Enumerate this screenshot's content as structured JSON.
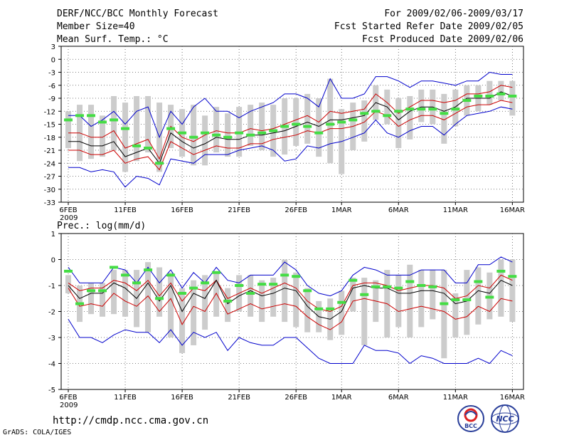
{
  "header": {
    "title": "DERF/NCC/BCC Monthly Forecast",
    "member": "Member Size=40",
    "var1": "Mean Surf. Temp.: °C",
    "for": "For 2009/02/06-2009/03/17",
    "started": "Fcst Started Refer Date 2009/02/05",
    "produced": "Fcst Produced Date 2009/02/06"
  },
  "footer": {
    "url": "http://cmdp.ncc.cma.gov.cn",
    "credit": "GrADS: COLA/IGES",
    "logo1_text": "BCC",
    "logo2_text": "NCC"
  },
  "colors": {
    "min_max": "#0000cc",
    "spread": "#cc0000",
    "mean": "#000000",
    "box": "#cccccc",
    "obs": "#44dd44"
  },
  "chart_data": [
    {
      "type": "line",
      "title": "Mean Surf. Temp.: °C",
      "x_tick_labels": [
        "6FEB",
        "11FEB",
        "16FEB",
        "21FEB",
        "26FEB",
        "1MAR",
        "6MAR",
        "11MAR",
        "16MAR"
      ],
      "x_tick_days": [
        1,
        6,
        11,
        16,
        21,
        25,
        30,
        35,
        40
      ],
      "year_label": "2009",
      "ylim": [
        -33,
        3
      ],
      "yticks": [
        3,
        0,
        -3,
        -6,
        -9,
        -12,
        -15,
        -18,
        -21,
        -24,
        -27,
        -30,
        -33
      ],
      "days": [
        1,
        2,
        3,
        4,
        5,
        6,
        7,
        8,
        9,
        10,
        11,
        12,
        13,
        14,
        15,
        16,
        17,
        18,
        19,
        20,
        21,
        22,
        23,
        24,
        25,
        26,
        27,
        28,
        29,
        30,
        31,
        32,
        33,
        34,
        35,
        36,
        37,
        38,
        39,
        40
      ],
      "series": [
        {
          "name": "max",
          "values": [
            -13,
            -13,
            -15.5,
            -14,
            -12,
            -15,
            -12,
            -11,
            -18,
            -12,
            -15,
            -11,
            -9,
            -12,
            -12,
            -13.5,
            -12,
            -11,
            -10,
            -8,
            -8,
            -9,
            -11,
            -4.5,
            -9,
            -9,
            -8,
            -4,
            -4,
            -5,
            -6.5,
            -5,
            -5,
            -5.5,
            -6,
            -5,
            -5,
            -3,
            -3.5,
            -3.5
          ]
        },
        {
          "name": "upper",
          "values": [
            -17,
            -17,
            -18,
            -18,
            -16.5,
            -20.5,
            -19.5,
            -18.5,
            -23,
            -15.5,
            -18,
            -19,
            -17.5,
            -16.5,
            -17,
            -17,
            -16,
            -16.5,
            -16,
            -15,
            -14,
            -13,
            -14.5,
            -12,
            -12.5,
            -12,
            -11.5,
            -8,
            -10,
            -12.5,
            -11,
            -9.5,
            -9.5,
            -10,
            -9.5,
            -8,
            -8,
            -7.5,
            -6,
            -6.5
          ]
        },
        {
          "name": "mean",
          "values": [
            -19,
            -19,
            -20,
            -20,
            -19,
            -22.5,
            -21.5,
            -20.5,
            -24,
            -17,
            -19,
            -20.5,
            -19.5,
            -18,
            -18.5,
            -18.5,
            -17.5,
            -17.5,
            -17,
            -16.5,
            -15.5,
            -14.5,
            -15.5,
            -14,
            -14,
            -13.5,
            -13,
            -10,
            -11,
            -14,
            -12,
            -11,
            -11,
            -12,
            -11,
            -9,
            -9,
            -9,
            -7.5,
            -8.5
          ]
        },
        {
          "name": "lower",
          "values": [
            -21,
            -21,
            -22,
            -22,
            -21,
            -24,
            -23,
            -22.5,
            -25.5,
            -19,
            -20.5,
            -22,
            -21,
            -20,
            -20.5,
            -20.5,
            -19.5,
            -19.5,
            -18.5,
            -18,
            -17.5,
            -16.5,
            -17,
            -16,
            -16,
            -15.5,
            -14.5,
            -12,
            -13,
            -15.5,
            -14,
            -13,
            -13,
            -14,
            -12.5,
            -11,
            -10.5,
            -10.5,
            -9.5,
            -10
          ]
        },
        {
          "name": "min",
          "values": [
            -25,
            -25,
            -26,
            -25.5,
            -26,
            -29.5,
            -27,
            -27.5,
            -29,
            -23,
            -23.5,
            -24,
            -22,
            -22,
            -22,
            -21,
            -20.5,
            -20,
            -21,
            -23.5,
            -23,
            -20,
            -20.5,
            -19.5,
            -19,
            -18,
            -17,
            -14,
            -17,
            -18,
            -16.5,
            -15.5,
            -15.5,
            -17.5,
            -15,
            -13,
            -12.5,
            -12,
            -11,
            -11.5
          ]
        },
        {
          "name": "box_top",
          "values": [
            -12,
            -10.5,
            -10.5,
            -13,
            -8.5,
            -10,
            -8.5,
            -8.5,
            -10,
            -10.5,
            -11.5,
            -10.5,
            -13,
            -11,
            -12.5,
            -11,
            -10.5,
            -10,
            -10.5,
            -9,
            -9,
            -8,
            -9,
            -4.5,
            -11.5,
            -10,
            -9.5,
            -6,
            -7,
            -9,
            -8.5,
            -7,
            -7,
            -8,
            -7,
            -6,
            -6,
            -5,
            -5,
            -5
          ]
        },
        {
          "name": "box_bottom",
          "values": [
            -20.5,
            -23.5,
            -23,
            -22.5,
            -21,
            -26,
            -23.5,
            -21.5,
            -26,
            -20.5,
            -22.5,
            -24.5,
            -24.5,
            -21.5,
            -22.5,
            -22.5,
            -20,
            -21,
            -22.5,
            -22,
            -20,
            -19.5,
            -22.5,
            -24,
            -26.5,
            -21,
            -19,
            -14,
            -15,
            -20.5,
            -18.5,
            -14.5,
            -15,
            -19.5,
            -15.5,
            -13,
            -12,
            -10.5,
            -9.5,
            -13
          ]
        },
        {
          "name": "observed",
          "values": [
            -14,
            -13,
            -13,
            -14.5,
            -14,
            -16,
            -20,
            -20.5,
            -24,
            -16,
            -17,
            -18,
            -17,
            -17.5,
            -18,
            -17,
            -17.5,
            -17,
            -16.5,
            -15.5,
            -15,
            -15.5,
            -17,
            -15,
            -14.5,
            -14,
            -12.5,
            -12,
            -13,
            -12,
            -11.5,
            -11.5,
            -11.5,
            -12.5,
            -11.5,
            -9.5,
            -8.5,
            -8.5,
            -8,
            -8.5
          ]
        }
      ]
    },
    {
      "type": "line",
      "title": "Prec.: log(mm/d)",
      "x_tick_labels": [
        "6FEB",
        "11FEB",
        "16FEB",
        "21FEB",
        "26FEB",
        "1MAR",
        "6MAR",
        "11MAR",
        "16MAR"
      ],
      "x_tick_days": [
        1,
        6,
        11,
        16,
        21,
        25,
        30,
        35,
        40
      ],
      "year_label": "2009",
      "ylim": [
        -5,
        1
      ],
      "yticks": [
        1,
        0,
        -1,
        -2,
        -3,
        -4,
        -5
      ],
      "days": [
        1,
        2,
        3,
        4,
        5,
        6,
        7,
        8,
        9,
        10,
        11,
        12,
        13,
        14,
        15,
        16,
        17,
        18,
        19,
        20,
        21,
        22,
        23,
        24,
        25,
        26,
        27,
        28,
        29,
        30,
        31,
        32,
        33,
        34,
        35,
        36,
        37,
        38,
        39,
        40
      ],
      "series": [
        {
          "name": "max",
          "values": [
            -0.3,
            -0.9,
            -0.9,
            -0.9,
            -0.3,
            -0.4,
            -0.9,
            -0.3,
            -0.9,
            -0.4,
            -1.1,
            -0.5,
            -0.9,
            -0.3,
            -0.8,
            -0.9,
            -0.6,
            -0.6,
            -0.6,
            -0.1,
            -0.4,
            -1.0,
            -1.3,
            -1.4,
            -1.2,
            -0.6,
            -0.3,
            -0.4,
            -0.6,
            -0.6,
            -0.6,
            -0.4,
            -0.4,
            -0.4,
            -0.9,
            -0.9,
            -0.2,
            -0.2,
            0.1,
            -0.1
          ]
        },
        {
          "name": "upper",
          "values": [
            -0.9,
            -1.2,
            -1.1,
            -1.1,
            -0.8,
            -0.9,
            -1.2,
            -0.8,
            -1.4,
            -0.9,
            -1.6,
            -1.1,
            -1.2,
            -0.8,
            -1.5,
            -1.3,
            -1.1,
            -1.3,
            -1.1,
            -0.9,
            -1.1,
            -1.6,
            -1.9,
            -2.0,
            -1.8,
            -1.0,
            -0.9,
            -0.9,
            -1.0,
            -1.2,
            -1.1,
            -1.0,
            -1.0,
            -1.1,
            -1.5,
            -1.4,
            -1.0,
            -1.1,
            -0.6,
            -0.8
          ]
        },
        {
          "name": "mean",
          "values": [
            -1.0,
            -1.5,
            -1.3,
            -1.3,
            -0.9,
            -1.1,
            -1.5,
            -0.9,
            -1.6,
            -1.0,
            -2.0,
            -1.3,
            -1.5,
            -0.8,
            -1.7,
            -1.4,
            -1.2,
            -1.4,
            -1.3,
            -1.1,
            -1.2,
            -1.8,
            -2.2,
            -2.3,
            -2.0,
            -1.1,
            -1.0,
            -1.1,
            -1.1,
            -1.3,
            -1.3,
            -1.2,
            -1.2,
            -1.3,
            -1.7,
            -1.6,
            -1.2,
            -1.3,
            -0.8,
            -1.0
          ]
        },
        {
          "name": "lower",
          "values": [
            -1.1,
            -1.8,
            -1.7,
            -1.8,
            -1.3,
            -1.6,
            -1.8,
            -1.4,
            -2.0,
            -1.5,
            -2.5,
            -1.8,
            -2.0,
            -1.3,
            -2.1,
            -1.9,
            -1.7,
            -1.9,
            -1.8,
            -1.7,
            -1.8,
            -2.2,
            -2.5,
            -2.7,
            -2.4,
            -1.6,
            -1.5,
            -1.6,
            -1.7,
            -2.0,
            -1.9,
            -1.8,
            -1.9,
            -2.0,
            -2.3,
            -2.2,
            -1.8,
            -2.0,
            -1.5,
            -1.6
          ]
        },
        {
          "name": "min",
          "values": [
            -2.3,
            -3.0,
            -3.0,
            -3.2,
            -2.9,
            -2.7,
            -2.8,
            -2.8,
            -3.2,
            -2.7,
            -3.3,
            -2.8,
            -3.0,
            -2.8,
            -3.5,
            -3.0,
            -3.2,
            -3.3,
            -3.3,
            -3.0,
            -3.0,
            -3.4,
            -3.8,
            -4.0,
            -4.0,
            -4.0,
            -3.3,
            -3.5,
            -3.5,
            -3.6,
            -4.0,
            -3.7,
            -3.8,
            -4.0,
            -4.0,
            -4.0,
            -3.8,
            -4.0,
            -3.5,
            -3.7
          ]
        },
        {
          "name": "box_top",
          "values": [
            -0.6,
            -1.0,
            -0.9,
            -0.9,
            -0.4,
            -0.4,
            -0.4,
            -0.1,
            -0.3,
            -0.5,
            -1.1,
            -0.8,
            -0.6,
            -0.5,
            -1.1,
            -0.6,
            -0.6,
            -0.8,
            -0.7,
            0.0,
            -0.5,
            -1.1,
            -1.6,
            -1.5,
            -1.2,
            -0.7,
            -0.7,
            -0.8,
            -0.4,
            -0.6,
            -0.2,
            -0.4,
            -0.4,
            -0.4,
            -1.3,
            -0.4,
            -0.3,
            -0.5,
            0.0,
            0.0
          ]
        },
        {
          "name": "box_bottom",
          "values": [
            -1.3,
            -2.4,
            -2.1,
            -2.2,
            -2.1,
            -2.2,
            -2.6,
            -2.8,
            -2.2,
            -3.0,
            -3.6,
            -3.3,
            -2.7,
            -2.2,
            -2.4,
            -2.0,
            -2.2,
            -2.4,
            -2.2,
            -2.4,
            -2.6,
            -2.8,
            -2.8,
            -3.1,
            -2.9,
            -2.0,
            -3.3,
            -2.4,
            -3.0,
            -2.6,
            -3.0,
            -2.6,
            -2.3,
            -3.8,
            -3.0,
            -2.9,
            -2.5,
            -2.3,
            -2.2,
            -2.4
          ]
        },
        {
          "name": "observed",
          "values": [
            -0.45,
            -1.7,
            -1.2,
            -1.2,
            -0.3,
            -0.6,
            -0.9,
            -0.4,
            -1.5,
            -0.6,
            -1.3,
            -1.1,
            -0.9,
            -0.5,
            -1.6,
            -1.0,
            -1.3,
            -0.95,
            -0.95,
            -0.6,
            -0.65,
            -1.2,
            -1.9,
            -1.9,
            -1.65,
            -0.8,
            -1.35,
            -1.05,
            -1.05,
            -1.1,
            -0.85,
            -1.0,
            -1.05,
            -1.7,
            -1.55,
            -1.55,
            -0.85,
            -1.45,
            -0.45,
            -0.65
          ]
        }
      ]
    }
  ]
}
